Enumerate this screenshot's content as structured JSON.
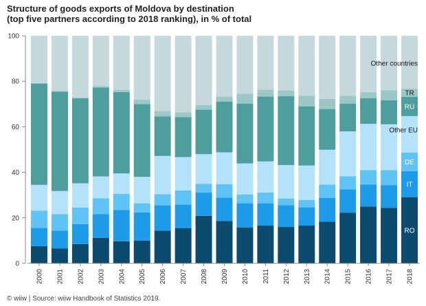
{
  "title": {
    "line1": "Structure of goods exports of Moldova by destination",
    "line2": "(top five partners according to 2018 ranking), in % of total"
  },
  "source": "© wiiw | Source: wiiw Handbook of Statistics 2019.",
  "colors": {
    "RO": "#0c4a6e",
    "IT": "#1e9be8",
    "DE": "#60c3f5",
    "Other EU": "#b5e2fb",
    "RU": "#4f9e9e",
    "TR": "#9bc7c6",
    "Other countries": "#c5d9dc"
  },
  "chart_data": {
    "type": "bar",
    "stacked": true,
    "title": "Structure of goods exports of Moldova by destination (top five partners according to 2018 ranking), in % of total",
    "categories": [
      "2000",
      "2001",
      "2002",
      "2003",
      "2004",
      "2005",
      "2006",
      "2007",
      "2008",
      "2009",
      "2010",
      "2011",
      "2012",
      "2013",
      "2014",
      "2015",
      "2016",
      "2017",
      "2018"
    ],
    "ylim": [
      0,
      100
    ],
    "yticks": [
      0,
      20,
      40,
      60,
      80,
      100
    ],
    "grid": false,
    "legend": "labels inside last bar",
    "series": [
      {
        "name": "RO",
        "values": [
          7.6,
          6.5,
          8.5,
          11.2,
          9.7,
          10.0,
          14.4,
          15.5,
          20.9,
          18.6,
          15.8,
          16.6,
          16.0,
          16.6,
          18.3,
          22.3,
          25.0,
          24.4,
          29.1
        ]
      },
      {
        "name": "IT",
        "values": [
          8.0,
          7.9,
          8.8,
          10.5,
          13.8,
          12.4,
          11.1,
          10.3,
          10.2,
          10.3,
          10.6,
          9.8,
          9.6,
          8.0,
          10.4,
          10.2,
          9.7,
          10.0,
          11.4
        ]
      },
      {
        "name": "DE",
        "values": [
          7.6,
          7.2,
          7.2,
          6.9,
          7.0,
          4.0,
          4.9,
          6.3,
          3.8,
          5.9,
          3.9,
          4.7,
          2.9,
          3.2,
          5.9,
          5.8,
          6.3,
          6.6,
          8.2
        ]
      },
      {
        "name": "Other EU",
        "values": [
          11.3,
          10.2,
          10.7,
          9.6,
          9.0,
          11.6,
          16.8,
          14.6,
          13.1,
          14.0,
          13.6,
          13.7,
          14.7,
          15.2,
          15.3,
          19.7,
          20.3,
          20.1,
          16.0
        ]
      },
      {
        "name": "RU",
        "values": [
          44.5,
          43.6,
          37.3,
          39.0,
          35.8,
          32.0,
          17.3,
          17.5,
          19.5,
          22.3,
          26.3,
          28.5,
          30.3,
          26.0,
          17.9,
          12.2,
          11.3,
          10.6,
          8.5
        ]
      },
      {
        "name": "TR",
        "values": [
          0.0,
          0.4,
          0.3,
          0.7,
          1.0,
          2.0,
          2.4,
          2.1,
          2.0,
          2.2,
          4.3,
          3.0,
          2.5,
          4.6,
          4.5,
          3.4,
          2.6,
          4.4,
          3.6
        ]
      },
      {
        "name": "Other countries",
        "values": [
          21.0,
          24.2,
          27.2,
          22.1,
          23.7,
          28.0,
          33.1,
          33.7,
          30.5,
          26.7,
          25.5,
          23.7,
          24.0,
          26.4,
          27.7,
          26.4,
          24.8,
          23.9,
          23.2
        ]
      }
    ]
  }
}
